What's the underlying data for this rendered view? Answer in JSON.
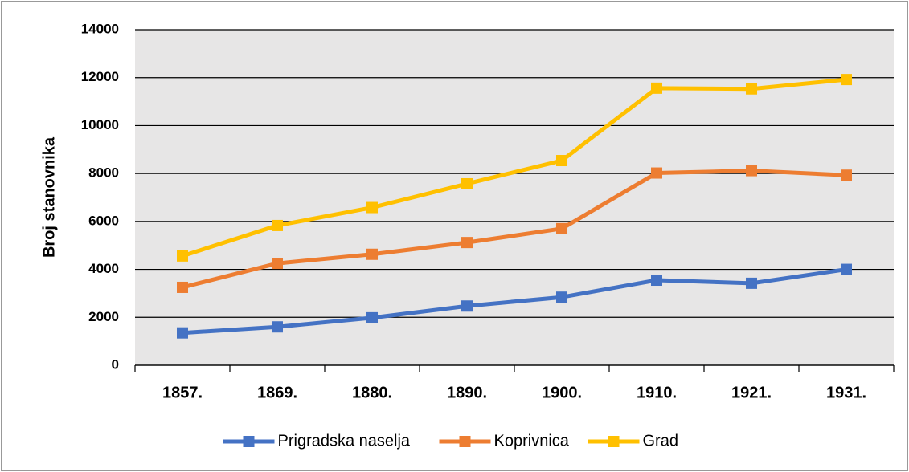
{
  "chart_data": {
    "type": "line",
    "y_label": "Broj stanovnika",
    "categories": [
      "1857.",
      "1869.",
      "1880.",
      "1890.",
      "1900.",
      "1910.",
      "1921.",
      "1931."
    ],
    "series": [
      {
        "name": "Prigradska naselja",
        "color": "#4472c4",
        "values": [
          1350,
          1600,
          1980,
          2470,
          2840,
          3550,
          3420,
          4000
        ]
      },
      {
        "name": "Koprivnica",
        "color": "#ed7d31",
        "values": [
          3250,
          4250,
          4630,
          5120,
          5700,
          8020,
          8120,
          7930
        ]
      },
      {
        "name": "Grad",
        "color": "#ffc000",
        "values": [
          4560,
          5830,
          6580,
          7570,
          8540,
          11560,
          11530,
          11920
        ]
      }
    ],
    "ylim": [
      0,
      14000
    ],
    "yticks": [
      0,
      2000,
      4000,
      6000,
      8000,
      10000,
      12000,
      14000
    ],
    "grid": true,
    "legend": "bottom"
  }
}
